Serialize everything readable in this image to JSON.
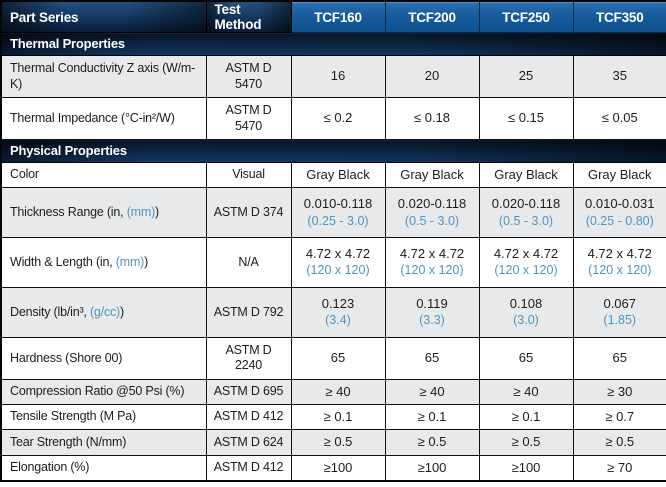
{
  "header": {
    "part_series": "Part Series",
    "test_method": "Test Method",
    "products": [
      "TCF160",
      "TCF200",
      "TCF250",
      "TCF350"
    ]
  },
  "colors": {
    "accent_blue": "#4f93c5",
    "product_header_blue": "#155a9e",
    "section_bar_navy": "#123a68",
    "row_shade_gray": "#e8e9ea"
  },
  "sections": [
    {
      "title": "Thermal Properties",
      "first_shaded": true,
      "rows": [
        {
          "label": "Thermal Conductivity Z axis (W/m-K)",
          "accent": "",
          "suffix": "",
          "method": "ASTM D 5470",
          "values": [
            {
              "v": "16"
            },
            {
              "v": "20"
            },
            {
              "v": "25"
            },
            {
              "v": "35"
            }
          ]
        },
        {
          "label": "Thermal Impedance (°C-in²/W)",
          "accent": "",
          "suffix": "",
          "method": "ASTM D 5470",
          "values": [
            {
              "v": "≤ 0.2"
            },
            {
              "v": "≤ 0.18"
            },
            {
              "v": "≤ 0.15"
            },
            {
              "v": "≤ 0.05"
            }
          ]
        }
      ]
    },
    {
      "title": "Physical Properties",
      "first_shaded": false,
      "rows": [
        {
          "label": "Color",
          "accent": "",
          "suffix": "",
          "method": "Visual",
          "values": [
            {
              "v": "Gray Black"
            },
            {
              "v": "Gray Black"
            },
            {
              "v": "Gray Black"
            },
            {
              "v": "Gray Black"
            }
          ]
        },
        {
          "label": "Thickness Range (in, ",
          "accent": "(mm)",
          "suffix": ")",
          "method": "ASTM D 374",
          "values": [
            {
              "v": "0.010-0.118",
              "sub": "(0.25 - 3.0)"
            },
            {
              "v": "0.020-0.118",
              "sub": "(0.5 - 3.0)"
            },
            {
              "v": "0.020-0.118",
              "sub": "(0.5 - 3.0)"
            },
            {
              "v": "0.010-0.031",
              "sub": "(0.25 - 0.80)"
            }
          ]
        },
        {
          "label": "Width & Length (in, ",
          "accent": "(mm)",
          "suffix": ")",
          "method": "N/A",
          "values": [
            {
              "v": "4.72 x 4.72",
              "sub": "(120 x 120)"
            },
            {
              "v": "4.72 x 4.72",
              "sub": "(120 x 120)"
            },
            {
              "v": "4.72 x 4.72",
              "sub": "(120 x 120)"
            },
            {
              "v": "4.72 x 4.72",
              "sub": "(120 x 120)"
            }
          ]
        },
        {
          "label": "Density (lb/in³, ",
          "accent": "(g/cc)",
          "suffix": ")",
          "method": "ASTM D 792",
          "values": [
            {
              "v": "0.123",
              "sub": "(3.4)"
            },
            {
              "v": "0.119",
              "sub": "(3.3)"
            },
            {
              "v": "0.108",
              "sub": "(3.0)"
            },
            {
              "v": "0.067",
              "sub": "(1.85)"
            }
          ]
        },
        {
          "label": "Hardness (Shore 00)",
          "accent": "",
          "suffix": "",
          "method": "ASTM D 2240",
          "values": [
            {
              "v": "65"
            },
            {
              "v": "65"
            },
            {
              "v": "65"
            },
            {
              "v": "65"
            }
          ]
        },
        {
          "label": "Compression Ratio @50 Psi (%)",
          "accent": "",
          "suffix": "",
          "method": "ASTM D 695",
          "values": [
            {
              "v": "≥ 40"
            },
            {
              "v": "≥ 40"
            },
            {
              "v": "≥ 40"
            },
            {
              "v": "≥ 30"
            }
          ]
        },
        {
          "label": "Tensile Strength (M Pa)",
          "accent": "",
          "suffix": "",
          "method": "ASTM D 412",
          "values": [
            {
              "v": "≥ 0.1"
            },
            {
              "v": "≥ 0.1"
            },
            {
              "v": "≥ 0.1"
            },
            {
              "v": "≥ 0.7"
            }
          ]
        },
        {
          "label": "Tear Strength (N/mm)",
          "accent": "",
          "suffix": "",
          "method": "ASTM D 624",
          "values": [
            {
              "v": "≥ 0.5"
            },
            {
              "v": "≥ 0.5"
            },
            {
              "v": "≥ 0.5"
            },
            {
              "v": "≥ 0.5"
            }
          ]
        },
        {
          "label": "Elongation (%)",
          "accent": "",
          "suffix": "",
          "method": "ASTM D 412",
          "values": [
            {
              "v": "≥100"
            },
            {
              "v": "≥100"
            },
            {
              "v": "≥100"
            },
            {
              "v": "≥ 70"
            }
          ]
        }
      ]
    }
  ]
}
